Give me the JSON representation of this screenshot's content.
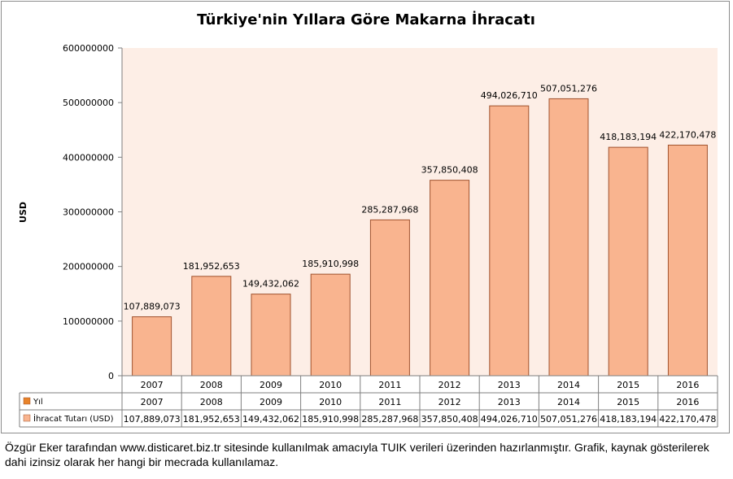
{
  "chart_data": {
    "type": "bar",
    "title": "Türkiye'nin Yıllara Göre Makarna İhracatı",
    "ylabel": "USD",
    "xlabel": "",
    "ylim": [
      0,
      600000000
    ],
    "yticks": [
      "0",
      "100000000",
      "200000000",
      "300000000",
      "400000000",
      "500000000",
      "600000000"
    ],
    "ytick_values": [
      0,
      100000000,
      200000000,
      300000000,
      400000000,
      500000000,
      600000000
    ],
    "categories": [
      "2007",
      "2008",
      "2009",
      "2010",
      "2011",
      "2012",
      "2013",
      "2014",
      "2015",
      "2016"
    ],
    "values": [
      107889073,
      181952653,
      149432062,
      185910998,
      285287968,
      357850408,
      494026710,
      507051276,
      418183194,
      422170478
    ],
    "value_labels": [
      "107,889,073",
      "181,952,653",
      "149,432,062",
      "185,910,998",
      "285,287,968",
      "357,850,408",
      "494,026,710",
      "507,051,276",
      "418,183,194",
      "422,170,478"
    ],
    "grid": false,
    "data_table": [
      {
        "name": "Yıl",
        "values": [
          "2007",
          "2008",
          "2009",
          "2010",
          "2011",
          "2012",
          "2013",
          "2014",
          "2015",
          "2016"
        ]
      },
      {
        "name": "İhracat Tutarı (USD)",
        "values": [
          "107,889,073",
          "181,952,653",
          "149,432,062",
          "185,910,998",
          "285,287,968",
          "357,850,408",
          "494,026,710",
          "507,051,276",
          "418,183,194",
          "422,170,478"
        ]
      }
    ]
  },
  "colors": {
    "bar_fill": "#f9b48f",
    "bar_stroke": "#a0522d",
    "plot_background": "#fdeee6",
    "legend_key_yil": "#e8832a"
  },
  "footer": "Özgür Eker tarafından www.disticaret.biz.tr sitesinde kullanılmak amacıyla TUIK verileri üzerinden hazırlanmıştır. Grafik, kaynak gösterilerek dahi izinsiz olarak her hangi bir mecrada kullanılamaz."
}
